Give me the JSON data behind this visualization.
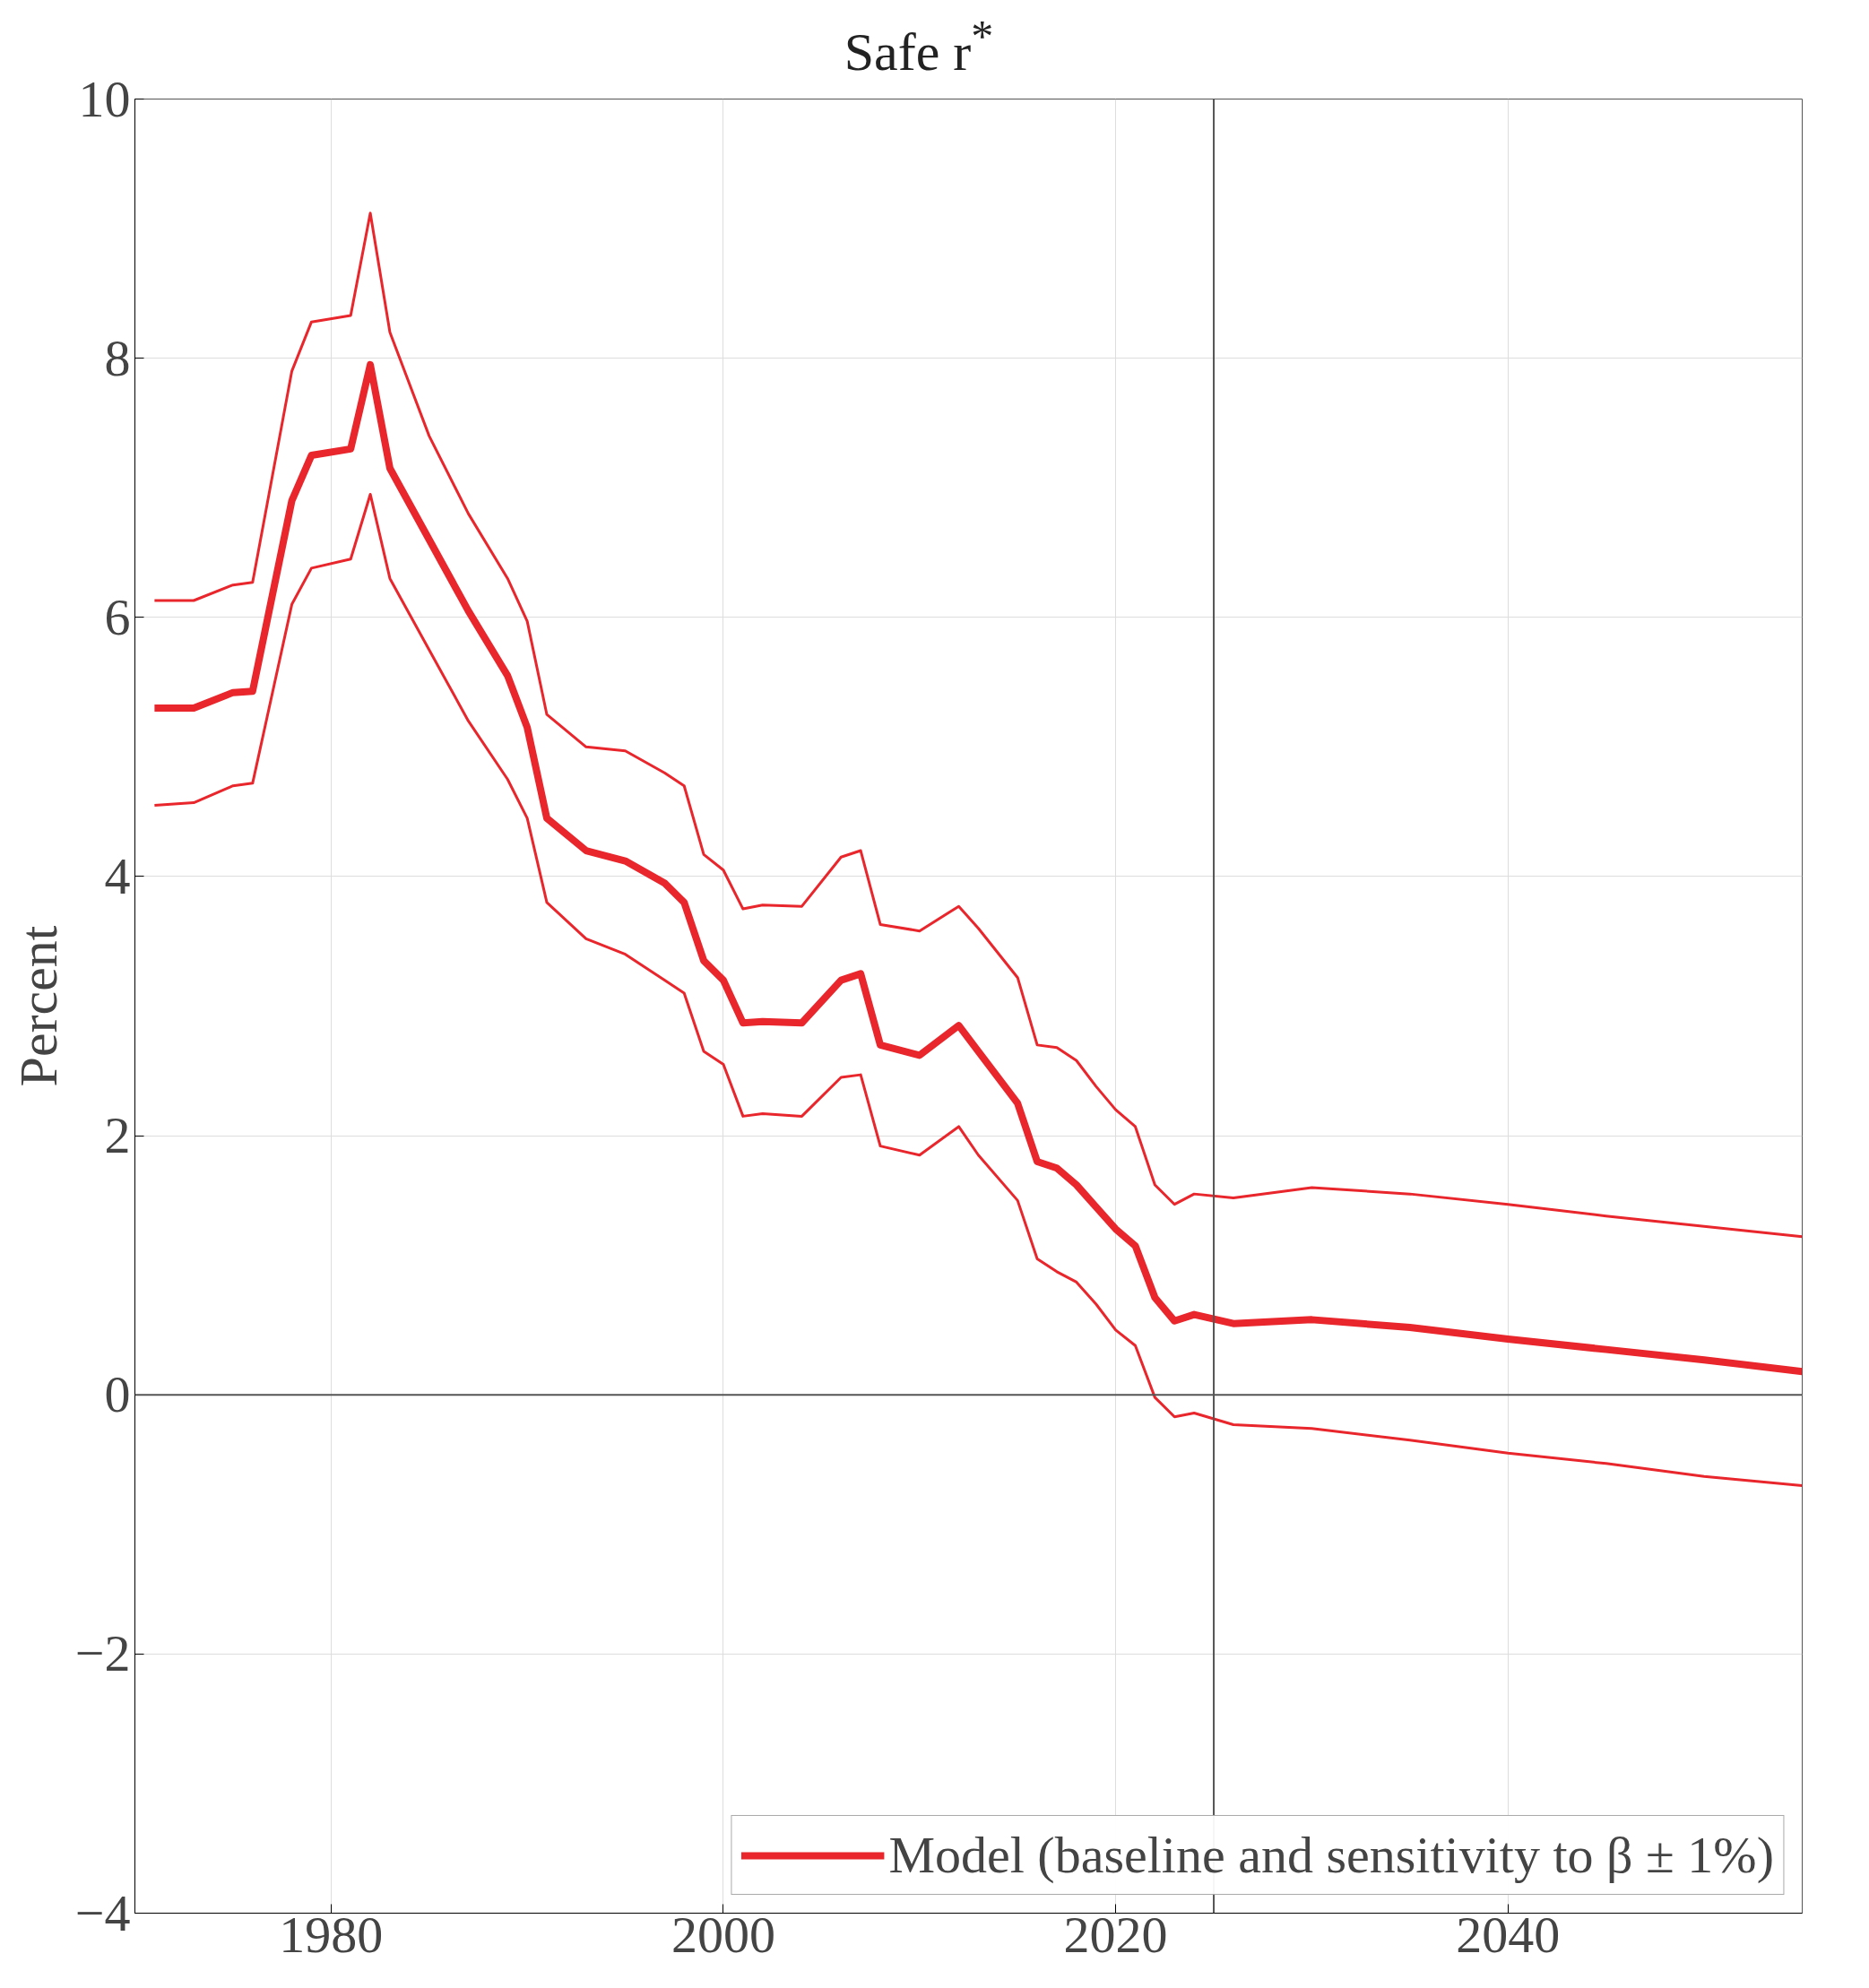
{
  "chart_data": {
    "type": "line",
    "title": "Safe r$^{*}$",
    "ylabel": "Percent",
    "x": [
      1971,
      1973,
      1975,
      1976,
      1978,
      1979,
      1981,
      1982,
      1983,
      1985,
      1987,
      1989,
      1990,
      1991,
      1993,
      1995,
      1997,
      1998,
      1999,
      2000,
      2001,
      2002,
      2004,
      2006,
      2007,
      2008,
      2010,
      2012,
      2013,
      2015,
      2016,
      2017,
      2018,
      2019,
      2020,
      2021,
      2022,
      2023,
      2024,
      2026,
      2030,
      2035,
      2040,
      2045,
      2050,
      2055
    ],
    "series": [
      {
        "name": "Model (baseline and sensitivity to β ± 1%)",
        "color": "#e8262c",
        "values": [
          5.3,
          5.3,
          5.42,
          5.43,
          6.9,
          7.25,
          7.3,
          7.95,
          7.15,
          6.6,
          6.05,
          5.55,
          5.15,
          4.45,
          4.2,
          4.12,
          3.95,
          3.8,
          3.35,
          3.2,
          2.87,
          2.88,
          2.87,
          3.2,
          3.25,
          2.7,
          2.62,
          2.85,
          2.65,
          2.25,
          1.8,
          1.75,
          1.62,
          1.45,
          1.28,
          1.15,
          0.75,
          0.57,
          0.62,
          0.55,
          0.58,
          0.52,
          0.43,
          0.35,
          0.27,
          0.18
        ]
      },
      {
        "color": "#e8262c",
        "values": [
          6.13,
          6.13,
          6.25,
          6.27,
          7.9,
          8.28,
          8.33,
          9.12,
          8.2,
          7.4,
          6.8,
          6.3,
          5.97,
          5.25,
          5.0,
          4.97,
          4.8,
          4.7,
          4.17,
          4.05,
          3.75,
          3.78,
          3.77,
          4.15,
          4.2,
          3.63,
          3.58,
          3.77,
          3.6,
          3.22,
          2.7,
          2.68,
          2.58,
          2.38,
          2.2,
          2.07,
          1.62,
          1.47,
          1.55,
          1.52,
          1.6,
          1.55,
          1.47,
          1.38,
          1.3,
          1.22
        ]
      },
      {
        "color": "#e8262c",
        "values": [
          4.55,
          4.57,
          4.7,
          4.72,
          6.1,
          6.38,
          6.45,
          6.95,
          6.3,
          5.75,
          5.2,
          4.75,
          4.45,
          3.8,
          3.52,
          3.4,
          3.2,
          3.1,
          2.65,
          2.55,
          2.15,
          2.17,
          2.15,
          2.45,
          2.47,
          1.92,
          1.85,
          2.07,
          1.85,
          1.5,
          1.05,
          0.95,
          0.87,
          0.7,
          0.5,
          0.38,
          -0.02,
          -0.17,
          -0.14,
          -0.23,
          -0.26,
          -0.35,
          -0.45,
          -0.53,
          -0.63,
          -0.7
        ]
      }
    ],
    "xlim": [
      1970,
      2055
    ],
    "ylim": [
      -4,
      10
    ],
    "xticks": [
      1980,
      2000,
      2020,
      2040
    ],
    "yticks": [
      -4,
      -2,
      0,
      2,
      4,
      6,
      8,
      10
    ],
    "ref_lines": [
      {
        "axis": "x",
        "value": 2025,
        "color": "#555555"
      },
      {
        "axis": "y",
        "value": 0,
        "color": "#555555"
      }
    ],
    "grid": true,
    "legend": "bottom right",
    "line_style": "solid",
    "marker": "none"
  }
}
